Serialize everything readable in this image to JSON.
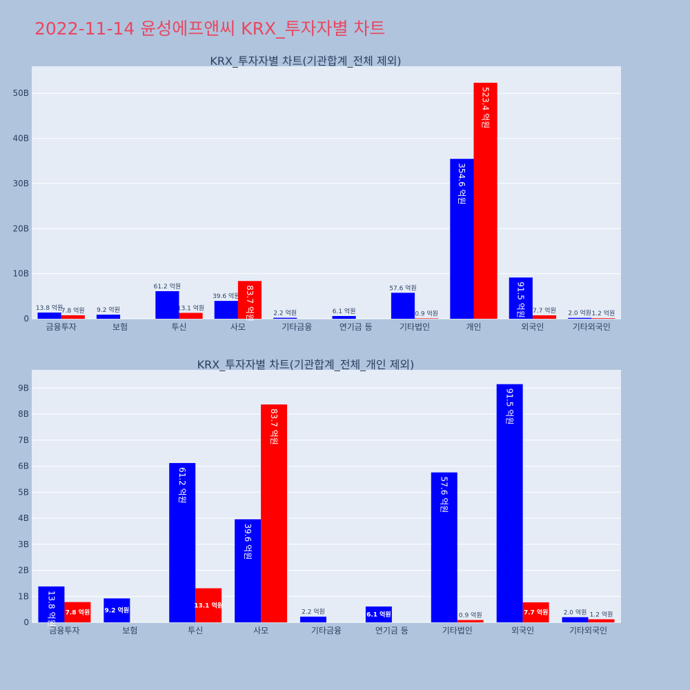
{
  "page": {
    "title": "2022-11-14 윤성에프앤씨 KRX_투자자별 차트"
  },
  "colors": {
    "background": "#b0c4de",
    "plot_bg": "#e5ecf6",
    "buy": "#0000ff",
    "sell": "#ff0000",
    "title": "#e8475f"
  },
  "chart_data": [
    {
      "type": "bar",
      "title": "KRX_투자자별 차트(기관합계_전체 제외)",
      "categories": [
        "금융투자",
        "보험",
        "투신",
        "사모",
        "기타금융",
        "연기금 등",
        "기타법인",
        "개인",
        "외국인",
        "기타외국인"
      ],
      "yticks": [
        "0",
        "10B",
        "20B",
        "30B",
        "40B",
        "50B"
      ],
      "ylim": [
        0,
        56
      ],
      "series": [
        {
          "values": [
            1.38,
            0.92,
            6.12,
            3.96,
            0.22,
            0.61,
            5.76,
            35.46,
            9.15,
            0.2
          ],
          "labels": [
            "13.8 억원",
            "9.2 억원",
            "61.2 억원",
            "39.6 억원",
            "2.2 억원",
            "6.1 억원",
            "57.6 억원",
            "354.6 억원",
            "91.5 억원",
            "2.0 억원"
          ]
        },
        {
          "values": [
            0.78,
            0,
            1.31,
            8.37,
            0,
            0,
            0.09,
            52.34,
            0.77,
            0.12
          ],
          "labels": [
            "7.8 억원",
            "",
            "13.1 억원",
            "83.7 억원",
            "",
            "",
            "0.9 억원",
            "523.4 억원",
            "7.7 억원",
            "1.2 억원"
          ]
        }
      ]
    },
    {
      "type": "bar",
      "title": "KRX_투자자별 차트(기관합계_전체_개인 제외)",
      "categories": [
        "금융투자",
        "보험",
        "투신",
        "사모",
        "기타금융",
        "연기금 등",
        "기타법인",
        "외국인",
        "기타외국인"
      ],
      "yticks": [
        "0",
        "1B",
        "2B",
        "3B",
        "4B",
        "5B",
        "6B",
        "7B",
        "8B",
        "9B"
      ],
      "ylim": [
        0,
        9.7
      ],
      "series": [
        {
          "values": [
            1.38,
            0.92,
            6.12,
            3.96,
            0.22,
            0.61,
            5.76,
            9.15,
            0.2
          ],
          "labels": [
            "13.8 억원",
            "9.2 억원",
            "61.2 억원",
            "39.6 억원",
            "2.2 억원",
            "6.1 억원",
            "57.6 억원",
            "91.5 억원",
            "2.0 억원"
          ]
        },
        {
          "values": [
            0.78,
            0,
            1.31,
            8.37,
            0,
            0,
            0.09,
            0.77,
            0.12
          ],
          "labels": [
            "7.8 억원",
            "",
            "13.1 억원",
            "83.7 억원",
            "",
            "",
            "0.9 억원",
            "7.7 억원",
            "1.2 억원"
          ]
        }
      ]
    }
  ]
}
